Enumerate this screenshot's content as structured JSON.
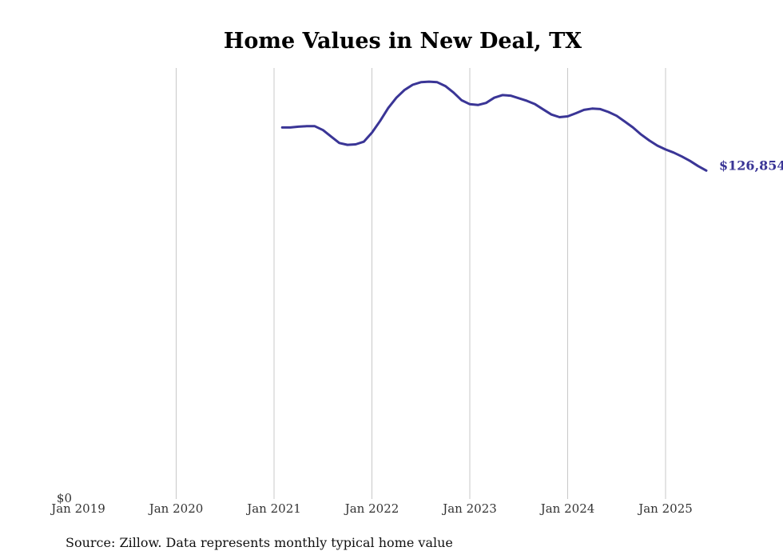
{
  "chart_data": {
    "type": "line",
    "title": "Home Values in New Deal, TX",
    "source": "Source: Zillow. Data represents monthly typical home value",
    "xlabel": "",
    "ylabel": "",
    "x_ticks": [
      "Jan 2019",
      "Jan 2020",
      "Jan 2021",
      "Jan 2022",
      "Jan 2023",
      "Jan 2024",
      "Jan 2025"
    ],
    "y_tick_label": "$0",
    "ylim": [
      0,
      160000
    ],
    "grid": "vertical",
    "end_label": "$126,854",
    "colors": {
      "line": "#3a3596",
      "grid": "#c8c8c8",
      "text": "#333333"
    },
    "series": [
      {
        "x": [
          "2021-02",
          "2021-03",
          "2021-04",
          "2021-05",
          "2021-06",
          "2021-07",
          "2021-08",
          "2021-09",
          "2021-10",
          "2021-11",
          "2021-12",
          "2022-01",
          "2022-02",
          "2022-03",
          "2022-04",
          "2022-05",
          "2022-06",
          "2022-07",
          "2022-08",
          "2022-09",
          "2022-10",
          "2022-11",
          "2022-12",
          "2023-01",
          "2023-02",
          "2023-03",
          "2023-04",
          "2023-05",
          "2023-06",
          "2023-07",
          "2023-08",
          "2023-09",
          "2023-10",
          "2023-11",
          "2023-12",
          "2024-01",
          "2024-02",
          "2024-03",
          "2024-04",
          "2024-05",
          "2024-06",
          "2024-07",
          "2024-08",
          "2024-09",
          "2024-10",
          "2024-11",
          "2024-12",
          "2025-01",
          "2025-02",
          "2025-03",
          "2025-04",
          "2025-05",
          "2025-06"
        ],
        "values": [
          143500,
          143500,
          143800,
          144000,
          144000,
          142500,
          140000,
          137500,
          136800,
          137000,
          138000,
          141500,
          146000,
          151000,
          155000,
          158000,
          160000,
          161000,
          161200,
          161000,
          159500,
          157000,
          154000,
          152500,
          152200,
          153000,
          155000,
          156000,
          155800,
          154800,
          153800,
          152500,
          150500,
          148500,
          147500,
          147800,
          149000,
          150300,
          150800,
          150600,
          149500,
          148000,
          145800,
          143500,
          140800,
          138500,
          136500,
          135000,
          133800,
          132300,
          130600,
          128600,
          126854
        ]
      }
    ]
  }
}
